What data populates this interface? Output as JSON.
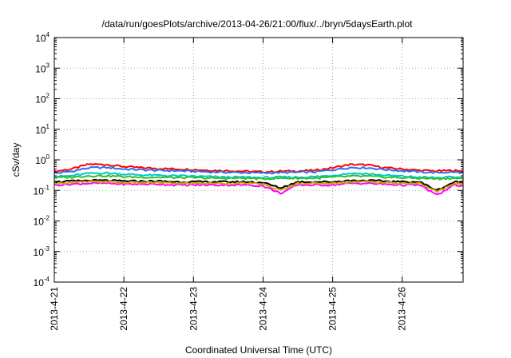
{
  "chart_data": {
    "type": "line",
    "title": "/data/run/goesPlots/archive/2013-04-26/21:00/flux/../bryn/5daysEarth.plot",
    "xlabel": "Coordinated Universal Time (UTC)",
    "ylabel": "cSv/day",
    "y_scale": "log",
    "ylim": [
      0.0001,
      10000
    ],
    "y_ticks": [
      {
        "value": 0.0001,
        "base": "10",
        "exp": "-4"
      },
      {
        "value": 0.001,
        "base": "10",
        "exp": "-3"
      },
      {
        "value": 0.01,
        "base": "10",
        "exp": "-2"
      },
      {
        "value": 0.1,
        "base": "10",
        "exp": "-1"
      },
      {
        "value": 1,
        "base": "10",
        "exp": "0"
      },
      {
        "value": 10,
        "base": "10",
        "exp": "1"
      },
      {
        "value": 100,
        "base": "10",
        "exp": "2"
      },
      {
        "value": 1000,
        "base": "10",
        "exp": "3"
      },
      {
        "value": 10000,
        "base": "10",
        "exp": "4"
      }
    ],
    "x_ticks": [
      "2013-4-21",
      "2013-4-22",
      "2013-4-23",
      "2013-4-24",
      "2013-4-25",
      "2013-4-26"
    ],
    "xlim": [
      "2013-04-21T00:00",
      "2013-04-26T21:00"
    ],
    "grid": true,
    "legend": "none",
    "x": [
      "2013-04-21T00:00",
      "2013-04-21T06:00",
      "2013-04-21T12:00",
      "2013-04-21T18:00",
      "2013-04-22T00:00",
      "2013-04-22T06:00",
      "2013-04-22T12:00",
      "2013-04-22T18:00",
      "2013-04-23T00:00",
      "2013-04-23T06:00",
      "2013-04-23T12:00",
      "2013-04-23T18:00",
      "2013-04-24T00:00",
      "2013-04-24T06:00",
      "2013-04-24T12:00",
      "2013-04-24T18:00",
      "2013-04-25T00:00",
      "2013-04-25T06:00",
      "2013-04-25T12:00",
      "2013-04-25T18:00",
      "2013-04-26T00:00",
      "2013-04-26T06:00",
      "2013-04-26T12:00",
      "2013-04-26T18:00",
      "2013-04-26T21:00"
    ],
    "series": [
      {
        "color": "#ff0000",
        "values": [
          0.42,
          0.5,
          0.72,
          0.7,
          0.6,
          0.55,
          0.52,
          0.5,
          0.48,
          0.45,
          0.44,
          0.42,
          0.4,
          0.42,
          0.43,
          0.45,
          0.55,
          0.7,
          0.68,
          0.55,
          0.5,
          0.45,
          0.43,
          0.45,
          0.42
        ]
      },
      {
        "color": "#2e6fe8",
        "values": [
          0.36,
          0.42,
          0.55,
          0.56,
          0.5,
          0.47,
          0.45,
          0.44,
          0.42,
          0.4,
          0.39,
          0.38,
          0.37,
          0.38,
          0.39,
          0.4,
          0.47,
          0.56,
          0.55,
          0.48,
          0.44,
          0.4,
          0.38,
          0.4,
          0.37
        ]
      },
      {
        "color": "#00c8c8",
        "values": [
          0.28,
          0.3,
          0.36,
          0.37,
          0.34,
          0.32,
          0.31,
          0.3,
          0.29,
          0.28,
          0.27,
          0.27,
          0.26,
          0.27,
          0.27,
          0.28,
          0.31,
          0.36,
          0.35,
          0.31,
          0.29,
          0.27,
          0.26,
          0.27,
          0.26
        ]
      },
      {
        "color": "#2ec02e",
        "values": [
          0.26,
          0.27,
          0.3,
          0.3,
          0.28,
          0.27,
          0.27,
          0.26,
          0.26,
          0.25,
          0.25,
          0.25,
          0.24,
          0.25,
          0.25,
          0.25,
          0.27,
          0.29,
          0.29,
          0.27,
          0.26,
          0.25,
          0.24,
          0.25,
          0.24
        ]
      },
      {
        "color": "#ff00ff",
        "values": [
          0.15,
          0.16,
          0.17,
          0.17,
          0.16,
          0.16,
          0.16,
          0.15,
          0.15,
          0.15,
          0.15,
          0.15,
          0.14,
          0.08,
          0.15,
          0.15,
          0.15,
          0.17,
          0.17,
          0.16,
          0.15,
          0.15,
          0.07,
          0.15,
          0.14
        ]
      },
      {
        "color": "#000000",
        "values": [
          0.19,
          0.2,
          0.21,
          0.21,
          0.2,
          0.2,
          0.2,
          0.19,
          0.19,
          0.19,
          0.19,
          0.19,
          0.18,
          0.12,
          0.19,
          0.19,
          0.19,
          0.21,
          0.21,
          0.2,
          0.19,
          0.19,
          0.1,
          0.19,
          0.18
        ]
      },
      {
        "color": "#d2a000",
        "values": [
          0.17,
          0.18,
          0.19,
          0.19,
          0.18,
          0.18,
          0.18,
          0.17,
          0.17,
          0.17,
          0.17,
          0.17,
          0.16,
          0.1,
          0.17,
          0.17,
          0.17,
          0.19,
          0.19,
          0.18,
          0.17,
          0.17,
          0.09,
          0.17,
          0.16
        ]
      }
    ]
  }
}
